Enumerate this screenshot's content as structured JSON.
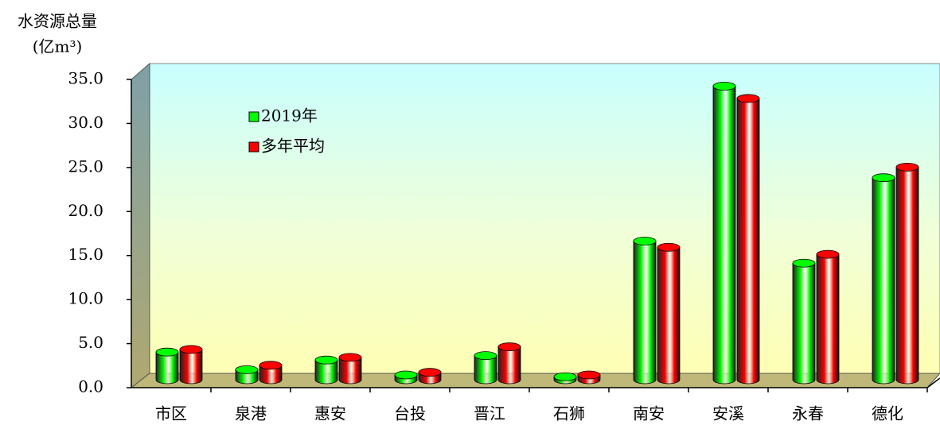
{
  "chart_data": {
    "type": "bar3d",
    "y_title": "水资源总量",
    "y_unit": "(亿m³)",
    "categories": [
      "市区",
      "泉港",
      "惠安",
      "台投",
      "晋江",
      "石狮",
      "南安",
      "安溪",
      "永春",
      "德化"
    ],
    "series": [
      {
        "name": "2019年",
        "color": "#00ff00",
        "values": [
          3.5,
          1.5,
          2.6,
          0.9,
          3.1,
          0.7,
          16.1,
          33.7,
          13.6,
          23.3
        ]
      },
      {
        "name": "多年平均",
        "color": "#ff0000",
        "values": [
          3.8,
          2.0,
          2.9,
          1.2,
          4.1,
          0.9,
          15.4,
          32.3,
          14.6,
          24.5
        ]
      }
    ],
    "ylim": [
      0,
      35
    ],
    "yticks": [
      {
        "value": 0,
        "label": "0.0"
      },
      {
        "value": 5,
        "label": "5.0"
      },
      {
        "value": 10,
        "label": "10.0"
      },
      {
        "value": 15,
        "label": "15.0"
      },
      {
        "value": 20,
        "label": "20.0"
      },
      {
        "value": 25,
        "label": "25.0"
      },
      {
        "value": 30,
        "label": "30.0"
      },
      {
        "value": 35,
        "label": "35.0"
      }
    ],
    "legend": "upper left"
  }
}
